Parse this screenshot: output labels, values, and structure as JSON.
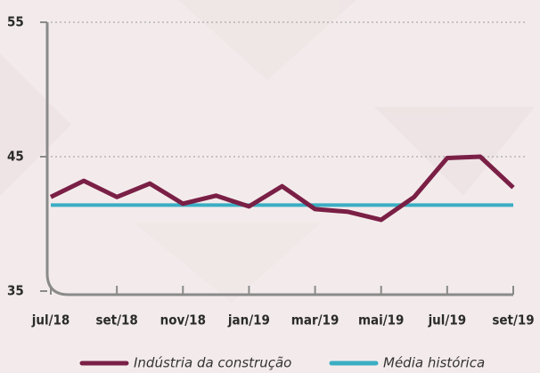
{
  "chart_data": {
    "type": "line",
    "categories": [
      "jul/18",
      null,
      "set/18",
      null,
      "nov/18",
      null,
      "jan/19",
      null,
      "mar/19",
      null,
      "mai/19",
      null,
      "jul/19",
      null,
      "set/19"
    ],
    "series": [
      {
        "name": "Indústria da construção",
        "color": "#7a1f45",
        "values": [
          42.0,
          43.2,
          42.0,
          43.0,
          41.5,
          42.1,
          41.3,
          42.8,
          41.1,
          40.9,
          40.3,
          42.0,
          44.9,
          45.0,
          42.7
        ]
      },
      {
        "name": "Média histórica",
        "color": "#3aaec3",
        "values": [
          41.4,
          41.4,
          41.4,
          41.4,
          41.4,
          41.4,
          41.4,
          41.4,
          41.4,
          41.4,
          41.4,
          41.4,
          41.4,
          41.4,
          41.4
        ]
      }
    ],
    "ylim": [
      35,
      55
    ],
    "yticks": [
      35,
      45,
      55
    ],
    "grid": true
  }
}
